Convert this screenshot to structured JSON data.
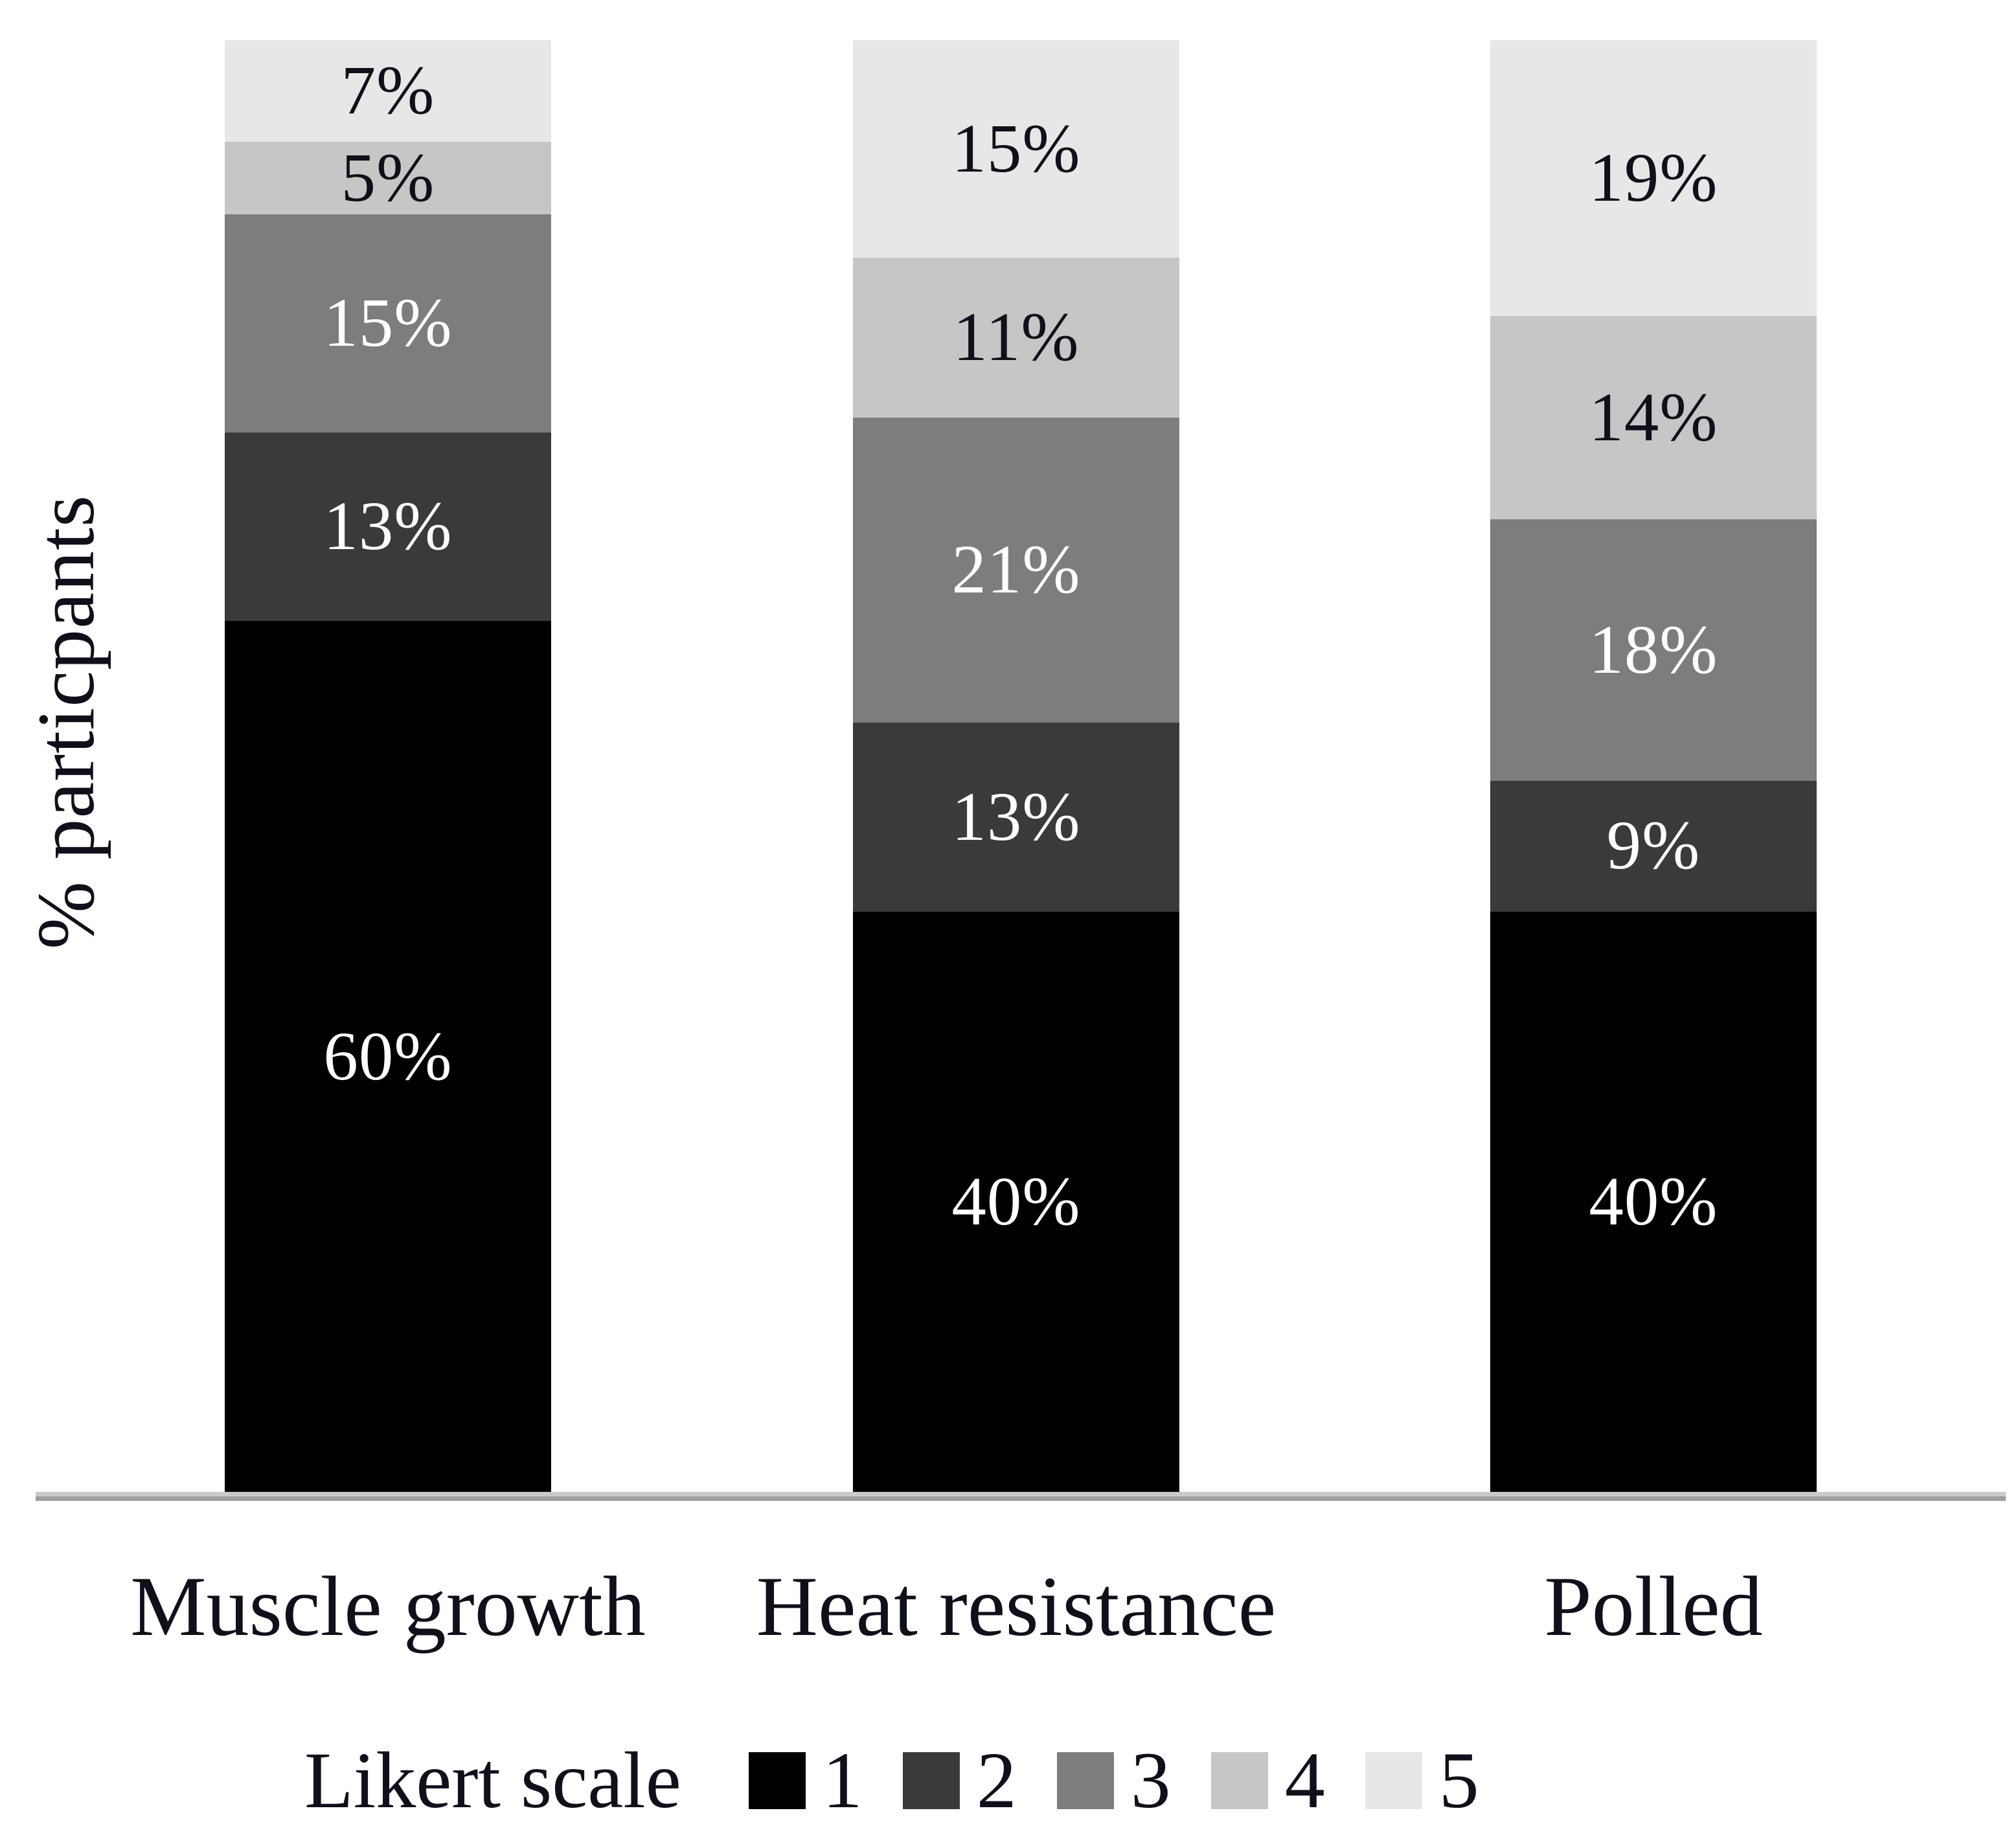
{
  "chart_data": {
    "type": "bar",
    "variant": "stacked-column",
    "title": "",
    "ylabel": "% particpants",
    "xlabel": "",
    "ylim": [
      0,
      100
    ],
    "grid": false,
    "value_suffix": "%",
    "categories": [
      "Muscle growth",
      "Heat resistance",
      "Polled"
    ],
    "series": [
      {
        "name": "1",
        "color": "#000000",
        "text_color": "#ffffff",
        "values": [
          60,
          40,
          40
        ]
      },
      {
        "name": "2",
        "color": "#3a3a3a",
        "text_color": "#ffffff",
        "values": [
          13,
          13,
          9
        ]
      },
      {
        "name": "3",
        "color": "#7d7d7d",
        "text_color": "#ffffff",
        "values": [
          15,
          21,
          18
        ]
      },
      {
        "name": "4",
        "color": "#c6c6c6",
        "text_color": "#10101a",
        "values": [
          5,
          11,
          14
        ]
      },
      {
        "name": "5",
        "color": "#e7e7e7",
        "text_color": "#10101a",
        "values": [
          7,
          15,
          19
        ]
      }
    ],
    "stack_order_bottom_to_top": [
      "1",
      "2",
      "3",
      "4",
      "5"
    ],
    "bar_value_labels": {
      "Muscle growth": [
        "60%",
        "13%",
        "15%",
        "5%",
        "7%"
      ],
      "Heat resistance": [
        "40%",
        "13%",
        "21%",
        "11%",
        "15%"
      ],
      "Polled": [
        "40%",
        "9%",
        "18%",
        "14%",
        "19%"
      ]
    },
    "legend": {
      "title": "Likert scale",
      "position": "bottom",
      "entries": [
        "1",
        "2",
        "3",
        "4",
        "5"
      ]
    },
    "axis_line_color": "#9d9d9d",
    "background_color": "#ffffff"
  }
}
